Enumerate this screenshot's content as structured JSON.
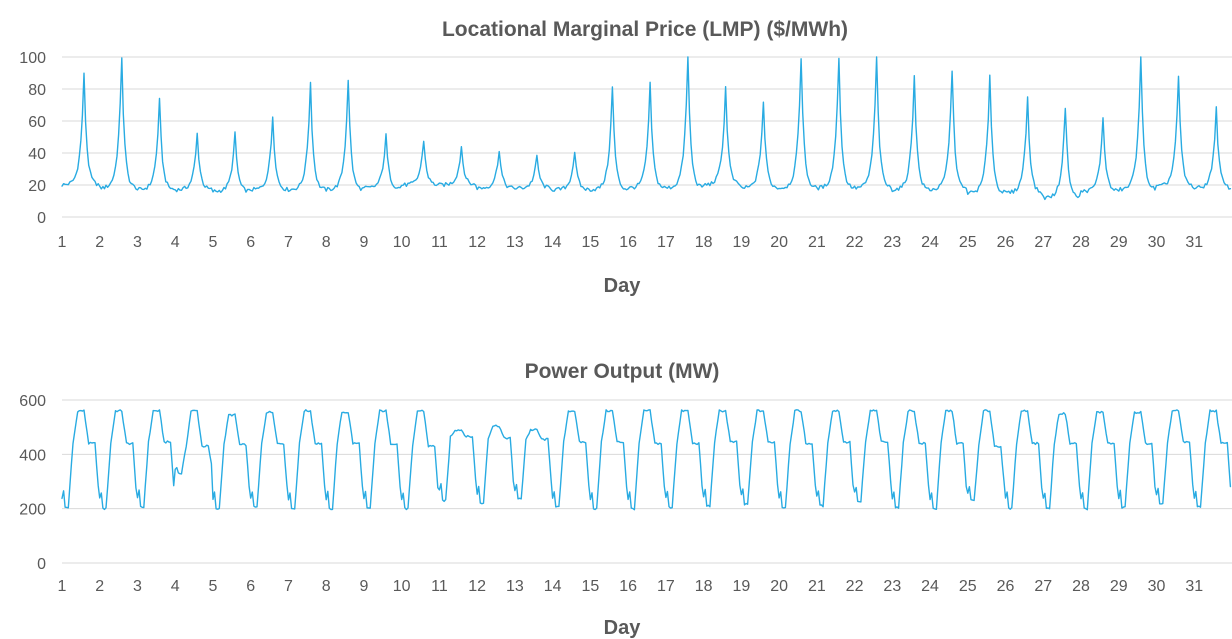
{
  "chart_data": [
    {
      "type": "line",
      "title": "Locational Marginal Price (LMP) ($/MWh)",
      "xlabel": "Day",
      "ylabel": "",
      "xlim": [
        1,
        32
      ],
      "ylim": [
        0,
        100
      ],
      "yticks": [
        0,
        20,
        40,
        60,
        80,
        100
      ],
      "xticks": [
        1,
        2,
        3,
        4,
        5,
        6,
        7,
        8,
        9,
        10,
        11,
        12,
        13,
        14,
        15,
        16,
        17,
        18,
        19,
        20,
        21,
        22,
        23,
        24,
        25,
        26,
        27,
        28,
        29,
        30,
        31
      ],
      "grid": true,
      "legend": "none",
      "color": "#29abe2",
      "series": [
        {
          "name": "",
          "daily_base": [
            20,
            18,
            17,
            17,
            16,
            17,
            17,
            17,
            18,
            20,
            20,
            18,
            18,
            17,
            17,
            18,
            18,
            20,
            18,
            18,
            18,
            18,
            17,
            17,
            15,
            15,
            12,
            16,
            17,
            19,
            18
          ],
          "daily_peak": [
            89,
            100,
            73,
            52,
            52,
            63,
            84,
            86,
            51,
            48,
            44,
            42,
            38,
            41,
            81,
            83,
            100,
            81,
            72,
            100,
            100,
            100,
            89,
            92,
            89,
            75,
            69,
            62,
            100,
            88,
            68
          ],
          "peak_hour": 14
        }
      ]
    },
    {
      "type": "line",
      "title": "Power Output (MW)",
      "xlabel": "Day",
      "ylabel": "",
      "xlim": [
        1,
        32
      ],
      "ylim": [
        0,
        600
      ],
      "yticks": [
        0,
        200,
        400,
        600
      ],
      "xticks": [
        1,
        2,
        3,
        4,
        5,
        6,
        7,
        8,
        9,
        10,
        11,
        12,
        13,
        14,
        15,
        16,
        17,
        18,
        19,
        20,
        21,
        22,
        23,
        24,
        25,
        26,
        27,
        28,
        29,
        30,
        31
      ],
      "grid": true,
      "legend": "none",
      "color": "#29abe2",
      "series": [
        {
          "name": "",
          "daily_min": [
            205,
            200,
            205,
            330,
            200,
            205,
            200,
            200,
            200,
            200,
            230,
            220,
            235,
            205,
            200,
            200,
            205,
            210,
            215,
            205,
            210,
            225,
            205,
            200,
            230,
            200,
            200,
            200,
            205,
            215,
            205
          ],
          "daily_max": [
            560,
            560,
            560,
            560,
            545,
            555,
            560,
            555,
            560,
            560,
            490,
            505,
            490,
            560,
            560,
            560,
            560,
            560,
            560,
            560,
            560,
            560,
            560,
            560,
            560,
            560,
            550,
            555,
            555,
            560,
            560
          ],
          "daily_shoulder": [
            440,
            440,
            445,
            430,
            435,
            440,
            440,
            440,
            440,
            430,
            465,
            460,
            455,
            445,
            445,
            440,
            440,
            445,
            445,
            440,
            445,
            445,
            440,
            440,
            430,
            440,
            440,
            440,
            440,
            445,
            440
          ]
        }
      ]
    }
  ]
}
